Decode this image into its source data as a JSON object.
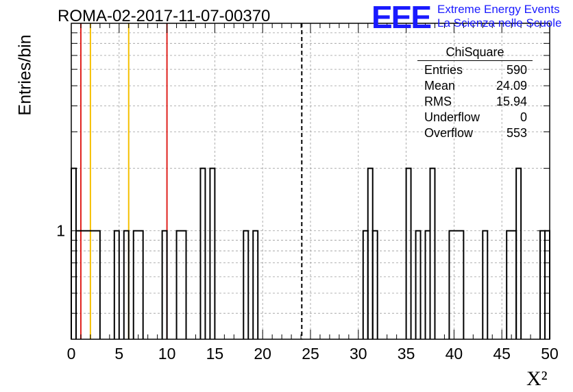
{
  "header": {
    "title": "ROMA-02-2017-11-07-00370",
    "logo_text": "EEE",
    "logo_line1": "Extreme Energy Events",
    "logo_line2": "La Scienza nelle Scuole"
  },
  "stats_box": {
    "title": "ChiSquare",
    "rows": [
      {
        "label": "Entries",
        "value": "590"
      },
      {
        "label": "Mean",
        "value": "24.09"
      },
      {
        "label": "RMS",
        "value": "15.94"
      },
      {
        "label": "Underflow",
        "value": "0"
      },
      {
        "label": "Overflow",
        "value": "553"
      }
    ]
  },
  "chart_data": {
    "type": "bar",
    "subtype": "step-histogram",
    "title": "ROMA-02-2017-11-07-00370",
    "xlabel": "X²",
    "ylabel": "Entries/bin",
    "xlim": [
      0,
      50
    ],
    "x_ticks": [
      0,
      5,
      10,
      15,
      20,
      25,
      30,
      35,
      40,
      45,
      50
    ],
    "y_scale": "log",
    "ylim": [
      0.3,
      10
    ],
    "y_tick_labels": [
      {
        "value": 1,
        "label": "1"
      }
    ],
    "grid": true,
    "bin_width": 0.5,
    "bins": [
      {
        "x0": 0.0,
        "x1": 0.5,
        "count": 2
      },
      {
        "x0": 0.5,
        "x1": 3.0,
        "count": 1
      },
      {
        "x0": 4.5,
        "x1": 5.0,
        "count": 1
      },
      {
        "x0": 5.5,
        "x1": 6.0,
        "count": 1
      },
      {
        "x0": 6.5,
        "x1": 7.5,
        "count": 1
      },
      {
        "x0": 9.5,
        "x1": 10.0,
        "count": 1
      },
      {
        "x0": 11.0,
        "x1": 12.0,
        "count": 1
      },
      {
        "x0": 13.5,
        "x1": 14.0,
        "count": 2
      },
      {
        "x0": 14.5,
        "x1": 15.0,
        "count": 2
      },
      {
        "x0": 18.0,
        "x1": 18.5,
        "count": 1
      },
      {
        "x0": 19.0,
        "x1": 19.5,
        "count": 1
      },
      {
        "x0": 30.5,
        "x1": 31.0,
        "count": 1
      },
      {
        "x0": 31.0,
        "x1": 31.5,
        "count": 2
      },
      {
        "x0": 31.5,
        "x1": 32.0,
        "count": 1
      },
      {
        "x0": 35.0,
        "x1": 35.5,
        "count": 2
      },
      {
        "x0": 36.0,
        "x1": 36.5,
        "count": 1
      },
      {
        "x0": 37.0,
        "x1": 37.5,
        "count": 1
      },
      {
        "x0": 37.5,
        "x1": 38.0,
        "count": 2
      },
      {
        "x0": 39.5,
        "x1": 41.0,
        "count": 1
      },
      {
        "x0": 43.0,
        "x1": 43.5,
        "count": 1
      },
      {
        "x0": 45.5,
        "x1": 46.5,
        "count": 1
      },
      {
        "x0": 46.5,
        "x1": 47.0,
        "count": 2
      },
      {
        "x0": 49.0,
        "x1": 49.5,
        "count": 1
      },
      {
        "x0": 49.5,
        "x1": 50.0,
        "count": 1
      }
    ],
    "reference_lines": [
      {
        "x": 1,
        "color": "#e0201c",
        "style": "solid"
      },
      {
        "x": 2,
        "color": "#f5c000",
        "style": "solid"
      },
      {
        "x": 6,
        "color": "#f5c000",
        "style": "solid"
      },
      {
        "x": 10,
        "color": "#e0201c",
        "style": "solid"
      },
      {
        "x": 24.09,
        "color": "#000000",
        "style": "dashed"
      }
    ]
  }
}
